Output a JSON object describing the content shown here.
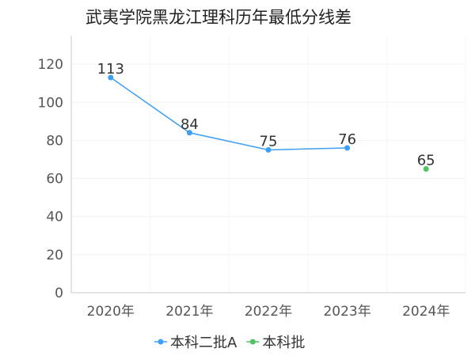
{
  "chart_data": {
    "type": "line",
    "title": "武夷学院黑龙江理科历年最低分线差",
    "categories": [
      "2020年",
      "2021年",
      "2022年",
      "2023年",
      "2024年"
    ],
    "series": [
      {
        "name": "本科二批A",
        "color": "#3d9ff5",
        "values": [
          113,
          84,
          75,
          76,
          null
        ]
      },
      {
        "name": "本科批",
        "color": "#4fc461",
        "values": [
          null,
          null,
          null,
          null,
          65
        ]
      }
    ],
    "ylim": [
      0,
      135
    ],
    "yticks": [
      0,
      20,
      40,
      60,
      80,
      100,
      120
    ],
    "xlabel": "",
    "ylabel": "",
    "legend_position": "bottom",
    "grid": true
  }
}
